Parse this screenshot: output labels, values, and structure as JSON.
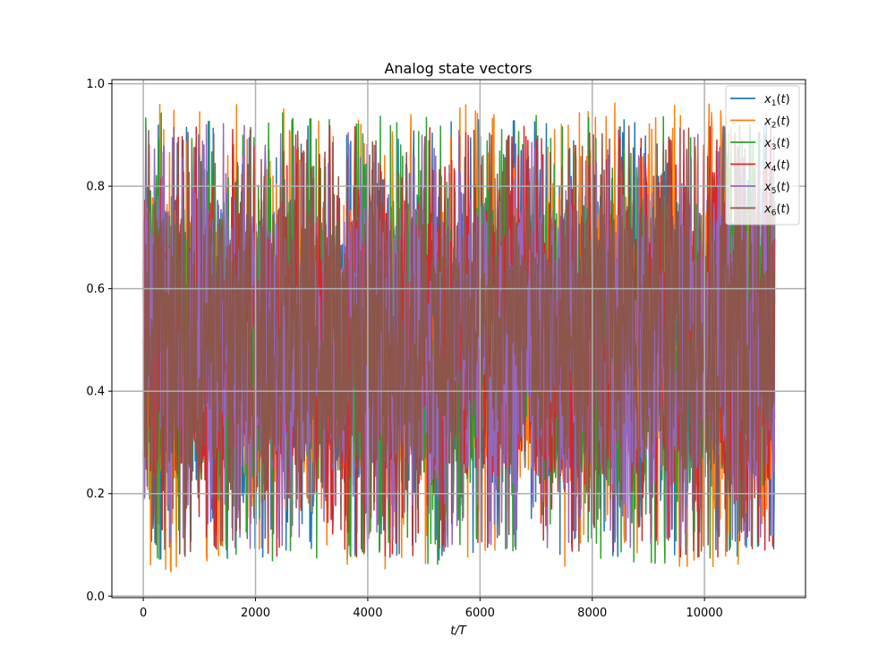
{
  "chart_data": {
    "type": "line",
    "title": "Analog state vectors",
    "xlabel": "t/T",
    "ylabel": "",
    "xlim": [
      -560,
      11800
    ],
    "ylim": [
      -0.003,
      1.008
    ],
    "x_range": [
      0,
      11250
    ],
    "grid": true,
    "legend_position": "top-right",
    "x_ticks": [
      0,
      2000,
      4000,
      6000,
      8000,
      10000
    ],
    "x_tick_labels": [
      "0",
      "2000",
      "4000",
      "6000",
      "8000",
      "10000"
    ],
    "y_ticks": [
      0.0,
      0.2,
      0.4,
      0.6,
      0.8,
      1.0
    ],
    "y_tick_labels": [
      "0.0",
      "0.2",
      "0.4",
      "0.6",
      "0.8",
      "1.0"
    ],
    "series": [
      {
        "name": "x1(t)",
        "sub": "1",
        "color": "#1f77b4",
        "center": 0.5,
        "core_low": 0.22,
        "core_high": 0.78,
        "max": 0.93,
        "min": 0.07
      },
      {
        "name": "x2(t)",
        "sub": "2",
        "color": "#ff7f0e",
        "center": 0.5,
        "core_low": 0.22,
        "core_high": 0.78,
        "max": 0.965,
        "min": 0.045
      },
      {
        "name": "x3(t)",
        "sub": "3",
        "color": "#2ca02c",
        "center": 0.5,
        "core_low": 0.22,
        "core_high": 0.78,
        "max": 0.945,
        "min": 0.06
      },
      {
        "name": "x4(t)",
        "sub": "4",
        "color": "#d62728",
        "center": 0.5,
        "core_low": 0.23,
        "core_high": 0.77,
        "max": 0.92,
        "min": 0.075
      },
      {
        "name": "x5(t)",
        "sub": "5",
        "color": "#9467bd",
        "center": 0.5,
        "core_low": 0.24,
        "core_high": 0.76,
        "max": 0.925,
        "min": 0.09
      },
      {
        "name": "x6(t)",
        "sub": "6",
        "color": "#8c564b",
        "center": 0.5,
        "core_low": 0.25,
        "core_high": 0.75,
        "max": 0.92,
        "min": 0.075
      }
    ]
  }
}
